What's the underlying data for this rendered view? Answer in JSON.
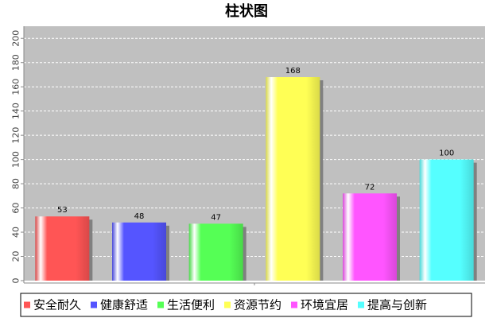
{
  "chart_data": {
    "type": "bar",
    "title": "柱状图",
    "xlabel": "",
    "ylabel": "",
    "categories": [
      "安全耐久",
      "健康舒适",
      "生活便利",
      "资源节约",
      "环境宜居",
      "提高与创新"
    ],
    "values": [
      53,
      48,
      47,
      168,
      72,
      100
    ],
    "ylim": [
      0,
      210
    ],
    "yticks": [
      0,
      20,
      40,
      60,
      80,
      100,
      120,
      140,
      160,
      180,
      200
    ],
    "colors": [
      "#ff5555",
      "#5555ff",
      "#55ff55",
      "#ffff55",
      "#ff55ff",
      "#55ffff"
    ],
    "grid": true,
    "legend_position": "bottom",
    "plot_background": "#c0c0c0"
  }
}
